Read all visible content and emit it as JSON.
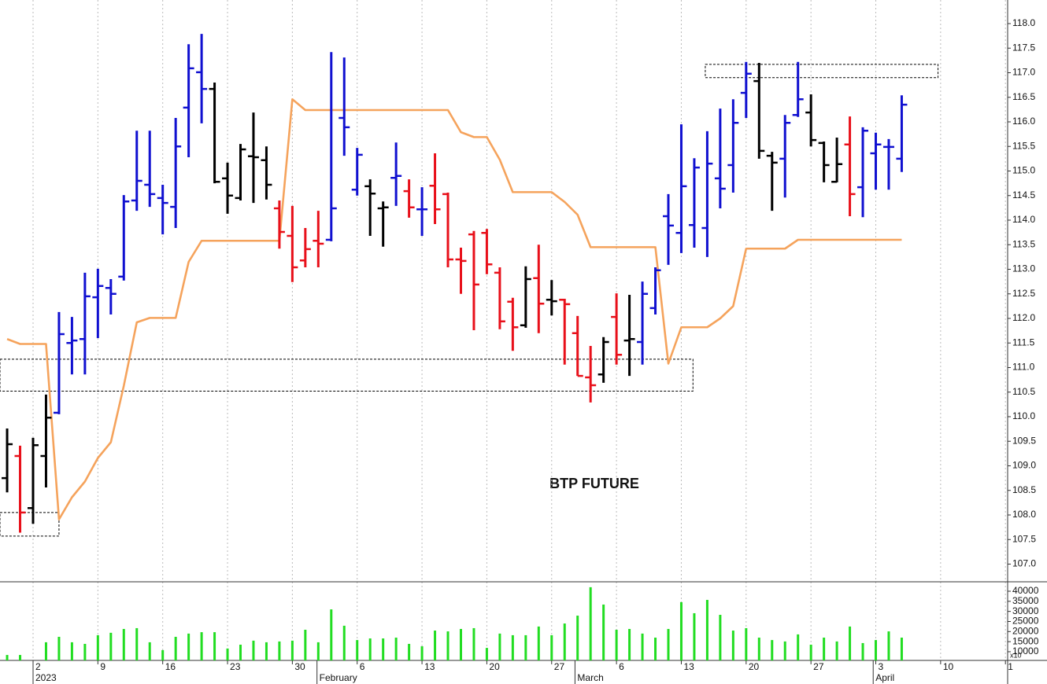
{
  "chart_data": [
    {
      "type": "ohlc",
      "annotation": "BTP FUTURE",
      "categories": [
        null,
        null,
        null,
        null,
        null,
        null,
        null,
        null,
        null,
        null,
        null,
        null,
        null,
        null,
        null,
        null,
        null,
        null,
        null,
        null,
        null,
        null,
        null,
        null,
        null,
        null,
        null,
        null,
        null,
        null,
        null,
        null,
        null,
        null,
        null,
        null,
        null,
        null,
        null,
        null,
        null,
        null,
        null,
        null,
        null,
        null,
        null,
        null,
        null,
        null,
        null,
        null,
        null,
        null,
        null,
        null,
        null,
        null,
        null,
        null,
        null,
        null,
        null,
        null,
        null,
        null,
        null,
        null,
        null,
        null
      ],
      "open": [
        108.75,
        109.2,
        108.14,
        109.2,
        110.08,
        111.5,
        111.58,
        112.43,
        112.62,
        112.85,
        114.4,
        114.72,
        114.45,
        114.27,
        116.29,
        117.01,
        116.67,
        114.85,
        114.45,
        115.3,
        115.22,
        114.24,
        113.68,
        113.18,
        113.58,
        113.6,
        116.08,
        114.62,
        114.69,
        114.24,
        114.86,
        114.59,
        114.22,
        114.7,
        114.53,
        113.2,
        113.71,
        113.74,
        112.93,
        112.34,
        111.86,
        112.82,
        112.38,
        112.38,
        111.7,
        110.8,
        110.86,
        112.03,
        111.55,
        111.52,
        112.21,
        114.08,
        113.74,
        113.9,
        113.84,
        114.85,
        115.12,
        116.59,
        116.83,
        115.31,
        115.25,
        116.14,
        116.19,
        115.57,
        114.78,
        115.54,
        114.67,
        115.36,
        115.49,
        115.25
      ],
      "high": [
        109.76,
        109.41,
        109.57,
        110.45,
        112.13,
        112.03,
        112.93,
        113.01,
        112.8,
        114.51,
        115.82,
        115.82,
        114.72,
        116.08,
        117.58,
        117.79,
        116.8,
        115.17,
        115.55,
        116.19,
        115.5,
        114.4,
        114.29,
        113.84,
        114.19,
        117.42,
        117.31,
        115.47,
        114.83,
        114.38,
        115.58,
        114.83,
        114.67,
        115.36,
        114.56,
        113.44,
        113.78,
        113.82,
        113.04,
        112.42,
        113.06,
        113.5,
        112.78,
        112.4,
        112.05,
        111.44,
        111.62,
        112.51,
        112.48,
        112.75,
        113.04,
        114.53,
        115.95,
        115.26,
        115.81,
        116.27,
        116.46,
        117.22,
        117.2,
        115.39,
        116.14,
        117.22,
        116.56,
        115.6,
        115.68,
        116.11,
        115.89,
        115.78,
        115.65,
        116.54
      ],
      "low": [
        108.46,
        107.64,
        107.82,
        108.56,
        110.05,
        110.86,
        110.86,
        111.6,
        112.08,
        112.77,
        114.19,
        114.27,
        113.71,
        113.84,
        115.28,
        115.97,
        114.75,
        114.13,
        114.4,
        114.35,
        114.42,
        113.42,
        112.74,
        113.04,
        113.04,
        113.57,
        115.31,
        114.5,
        113.68,
        113.46,
        114.29,
        114.05,
        113.68,
        113.92,
        113.04,
        112.5,
        111.76,
        112.9,
        111.78,
        111.34,
        111.81,
        111.7,
        112.06,
        111.06,
        110.83,
        110.29,
        110.69,
        111.06,
        110.83,
        111.06,
        112.08,
        113.09,
        113.33,
        113.44,
        113.25,
        114.24,
        114.56,
        116.08,
        115.25,
        114.19,
        114.46,
        116.1,
        115.5,
        114.77,
        114.77,
        114.08,
        114.06,
        114.62,
        114.62,
        114.98
      ],
      "close": [
        109.44,
        108.05,
        109.42,
        109.98,
        111.68,
        111.55,
        112.45,
        112.66,
        112.5,
        114.38,
        114.8,
        114.53,
        114.35,
        115.5,
        117.09,
        116.67,
        114.78,
        114.5,
        115.44,
        115.28,
        114.72,
        113.76,
        113.04,
        113.41,
        113.52,
        114.24,
        115.89,
        115.33,
        114.54,
        114.26,
        114.9,
        114.26,
        114.22,
        114.22,
        113.2,
        113.17,
        112.69,
        113.1,
        111.94,
        111.82,
        112.8,
        112.3,
        112.35,
        112.29,
        110.83,
        110.64,
        111.52,
        111.26,
        111.58,
        112.5,
        112.98,
        113.89,
        114.69,
        115.07,
        115.15,
        114.64,
        115.98,
        116.98,
        115.41,
        115.17,
        115.98,
        116.46,
        115.63,
        115.12,
        115.14,
        114.53,
        115.82,
        115.54,
        115.49,
        116.35
      ],
      "colors": [
        "#000000",
        "#e8101a",
        "#000000",
        "#000000",
        "#1010d0",
        "#1010d0",
        "#1010d0",
        "#1010d0",
        "#1010d0",
        "#1010d0",
        "#1010d0",
        "#1010d0",
        "#1010d0",
        "#1010d0",
        "#1010d0",
        "#1010d0",
        "#000000",
        "#000000",
        "#000000",
        "#000000",
        "#000000",
        "#e8101a",
        "#e8101a",
        "#e8101a",
        "#e8101a",
        "#1010d0",
        "#1010d0",
        "#1010d0",
        "#000000",
        "#000000",
        "#1010d0",
        "#e8101a",
        "#1010d0",
        "#e8101a",
        "#e8101a",
        "#e8101a",
        "#e8101a",
        "#e8101a",
        "#e8101a",
        "#e8101a",
        "#000000",
        "#e8101a",
        "#000000",
        "#e8101a",
        "#e8101a",
        "#e8101a",
        "#000000",
        "#e8101a",
        "#000000",
        "#1010d0",
        "#1010d0",
        "#1010d0",
        "#1010d0",
        "#1010d0",
        "#1010d0",
        "#1010d0",
        "#1010d0",
        "#1010d0",
        "#000000",
        "#000000",
        "#1010d0",
        "#1010d0",
        "#000000",
        "#000000",
        "#000000",
        "#e8101a",
        "#1010d0",
        "#1010d0",
        "#1010d0",
        "#1010d0"
      ],
      "line": {
        "color": "#f5a35c",
        "values": [
          111.58,
          111.48,
          111.48,
          111.48,
          107.91,
          108.36,
          108.68,
          109.16,
          109.48,
          110.63,
          111.92,
          112.01,
          112.01,
          112.01,
          113.15,
          113.58,
          113.58,
          113.58,
          113.58,
          113.58,
          113.58,
          113.58,
          116.46,
          116.24,
          116.24,
          116.24,
          116.24,
          116.24,
          116.24,
          116.24,
          116.24,
          116.24,
          116.24,
          116.24,
          116.24,
          115.79,
          115.69,
          115.69,
          115.23,
          114.57,
          114.57,
          114.57,
          114.57,
          114.37,
          114.11,
          113.45,
          113.45,
          113.45,
          113.45,
          113.45,
          113.45,
          111.08,
          111.82,
          111.82,
          111.82,
          112.0,
          112.25,
          113.42,
          113.42,
          113.42,
          113.42,
          113.6,
          113.6,
          113.6,
          113.6,
          113.6,
          113.6,
          113.6,
          113.6,
          113.6
        ]
      },
      "zones": [
        {
          "x": [
            -0.55,
            4.0
          ],
          "y": [
            107.57,
            108.05
          ]
        },
        {
          "x": [
            -0.55,
            52.9
          ],
          "y": [
            110.52,
            111.17
          ]
        },
        {
          "x": [
            53.85,
            71.8
          ],
          "y": [
            116.9,
            117.17
          ]
        }
      ],
      "xlim": [
        -0.55,
        77.17
      ],
      "ylim": [
        106.64,
        118.48
      ],
      "yticks": [
        {
          "value": 107,
          "label": "107.0"
        },
        107.5,
        {
          "value": 108,
          "label": "108.0"
        },
        108.5,
        {
          "value": 109,
          "label": "109.0"
        },
        109.5,
        {
          "value": 110,
          "label": "110.0"
        },
        110.5,
        {
          "value": 111,
          "label": "111.0"
        },
        111.5,
        {
          "value": 112,
          "label": "112.0"
        },
        112.5,
        {
          "value": 113,
          "label": "113.0"
        },
        113.5,
        {
          "value": 114,
          "label": "114.0"
        },
        114.5,
        {
          "value": 115,
          "label": "115.0"
        },
        115.5,
        {
          "value": 116,
          "label": "116.0"
        },
        116.5,
        {
          "value": 117,
          "label": "117.0"
        },
        117.5,
        {
          "value": 118,
          "label": "118.0"
        }
      ]
    },
    {
      "type": "bar",
      "color": "#22dd22",
      "unit_label": "x10",
      "categories": [
        null,
        null,
        null,
        null,
        null,
        null,
        null,
        null,
        null,
        null,
        null,
        null,
        null,
        null,
        null,
        null,
        null,
        null,
        null,
        null,
        null,
        null,
        null,
        null,
        null,
        null,
        null,
        null,
        null,
        null,
        null,
        null,
        null,
        null,
        null,
        null,
        null,
        null,
        null,
        null,
        null,
        null,
        null,
        null,
        null,
        null,
        null,
        null,
        null,
        null,
        null,
        null,
        null,
        null,
        null,
        null,
        null,
        null,
        null,
        null,
        null,
        null,
        null,
        null,
        null,
        null,
        null,
        null,
        null,
        null
      ],
      "values": [
        8400,
        8400,
        null,
        14700,
        17400,
        14700,
        13900,
        18200,
        19400,
        21300,
        21700,
        14700,
        10800,
        17400,
        19000,
        19700,
        19700,
        11600,
        13500,
        15500,
        14700,
        15100,
        15500,
        20900,
        14700,
        31000,
        22900,
        15800,
        16600,
        16600,
        17000,
        13900,
        12700,
        20500,
        20100,
        21300,
        21700,
        11900,
        19000,
        18200,
        18200,
        22500,
        18200,
        24000,
        27900,
        42000,
        33400,
        20900,
        21300,
        19000,
        17000,
        21300,
        34600,
        29100,
        35700,
        28300,
        20500,
        21700,
        17000,
        15800,
        15100,
        18600,
        13500,
        17000,
        15100,
        22500,
        14300,
        15800,
        20100,
        17000
      ],
      "xlim": [
        -0.55,
        77.17
      ],
      "ylim": [
        5700,
        43900
      ],
      "yticks": [
        10000,
        15000,
        20000,
        25000,
        30000,
        35000,
        40000
      ],
      "grid": true,
      "xticks": [
        {
          "value": 2,
          "label": "2"
        },
        {
          "value": 7,
          "label": "9"
        },
        {
          "value": 12,
          "label": "16"
        },
        {
          "value": 17,
          "label": "23"
        },
        {
          "value": 22,
          "label": "30"
        },
        {
          "value": 27,
          "label": "6"
        },
        {
          "value": 32,
          "label": "13"
        },
        {
          "value": 37,
          "label": "20"
        },
        {
          "value": 42,
          "label": "27"
        },
        {
          "value": 47,
          "label": "6"
        },
        {
          "value": 52,
          "label": "13"
        },
        {
          "value": 57,
          "label": "20"
        },
        {
          "value": 62,
          "label": "27"
        },
        {
          "value": 67,
          "label": "3"
        },
        {
          "value": 72,
          "label": "10"
        },
        {
          "value": 77,
          "label": "1"
        }
      ],
      "month_ticks": [
        {
          "value": 2,
          "label": "2023"
        },
        {
          "value": 23.9,
          "label": "February"
        },
        {
          "value": 43.8,
          "label": "March"
        },
        {
          "value": 66.8,
          "label": "April"
        }
      ]
    }
  ]
}
